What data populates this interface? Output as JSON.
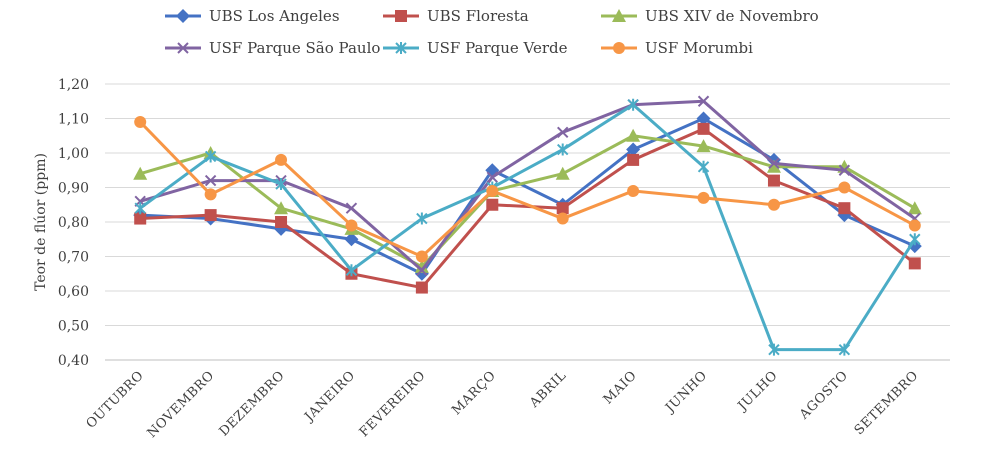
{
  "chart_data": {
    "type": "line",
    "categories": [
      "OUTUBRO",
      "NOVEMBRO",
      "DEZEMBRO",
      "JANEIRO",
      "FEVEREIRO",
      "MARÇO",
      "ABRIL",
      "MAIO",
      "JUNHO",
      "JULHO",
      "AGOSTO",
      "SETEMBRO"
    ],
    "ylabel": "Teor de flúor (ppm)",
    "ylim": [
      0.4,
      1.2
    ],
    "yticks": [
      "0,40",
      "0,50",
      "0,60",
      "0,70",
      "0,80",
      "0,90",
      "1,00",
      "1,10",
      "1,20"
    ],
    "grid": "horizontal",
    "legend": "top",
    "series": [
      {
        "name": "UBS Los Angeles",
        "color": "#4472C4",
        "marker": "diamond",
        "values": [
          0.82,
          0.81,
          0.78,
          0.75,
          0.65,
          0.95,
          0.85,
          1.01,
          1.1,
          0.98,
          0.82,
          0.73
        ]
      },
      {
        "name": "UBS Floresta",
        "color": "#C0504D",
        "marker": "square",
        "values": [
          0.81,
          0.82,
          0.8,
          0.65,
          0.61,
          0.85,
          0.84,
          0.98,
          1.07,
          0.92,
          0.84,
          0.68
        ]
      },
      {
        "name": "UBS XIV de Novembro",
        "color": "#9BBB59",
        "marker": "triangle",
        "values": [
          0.94,
          1.0,
          0.84,
          0.78,
          0.67,
          0.89,
          0.94,
          1.05,
          1.02,
          0.96,
          0.96,
          0.84
        ]
      },
      {
        "name": "USF Parque São Paulo",
        "color": "#8064A2",
        "marker": "x",
        "values": [
          0.86,
          0.92,
          0.92,
          0.84,
          0.66,
          0.93,
          1.06,
          1.14,
          1.15,
          0.97,
          0.95,
          0.81
        ]
      },
      {
        "name": "USF Parque Verde",
        "color": "#4BACC6",
        "marker": "star",
        "values": [
          0.84,
          0.99,
          0.91,
          0.66,
          0.81,
          0.9,
          1.01,
          1.14,
          0.96,
          0.43,
          0.43,
          0.75
        ]
      },
      {
        "name": "USF Morumbi",
        "color": "#F79646",
        "marker": "circle",
        "values": [
          1.09,
          0.88,
          0.98,
          0.79,
          0.7,
          0.89,
          0.81,
          0.89,
          0.87,
          0.85,
          0.9,
          0.79
        ]
      }
    ]
  }
}
